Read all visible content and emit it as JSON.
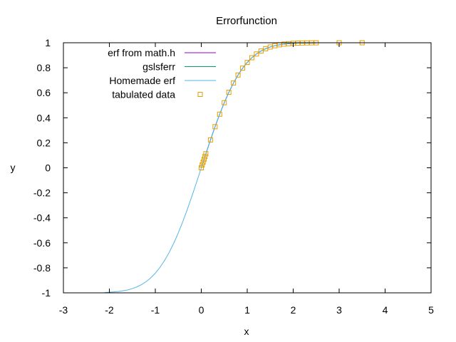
{
  "chart_data": {
    "type": "line",
    "title": "Errorfunction",
    "xlabel": "x",
    "ylabel": "y",
    "xlim": [
      -3,
      5
    ],
    "ylim": [
      -1,
      1
    ],
    "xticks": [
      -3,
      -2,
      -1,
      0,
      1,
      2,
      3,
      4,
      5
    ],
    "yticks": [
      -1,
      -0.8,
      -0.6,
      -0.4,
      -0.2,
      0,
      0.2,
      0.4,
      0.6,
      0.8,
      1
    ],
    "xtick_labels": [
      "-3",
      "-2",
      "-1",
      "0",
      "1",
      "2",
      "3",
      "4",
      "5"
    ],
    "ytick_labels": [
      "-1",
      "-0.8",
      "-0.6",
      "-0.4",
      "-0.2",
      "0",
      "0.2",
      "0.4",
      "0.6",
      "0.8",
      "1"
    ],
    "grid": false,
    "legend_position": "top-left",
    "series": [
      {
        "name": "erf from math.h",
        "style": "line",
        "color": "#9400d3",
        "x": [
          0,
          0.1,
          0.2,
          0.3,
          0.4,
          0.5,
          0.6,
          0.7,
          0.8,
          0.9,
          1.0,
          1.1,
          1.2,
          1.3,
          1.4,
          1.5,
          1.6,
          1.7,
          1.8,
          1.9,
          2.0,
          2.1,
          2.2,
          2.3,
          2.4,
          2.5
        ],
        "y": [
          0,
          0.1125,
          0.2227,
          0.3286,
          0.4284,
          0.5205,
          0.6039,
          0.6778,
          0.7421,
          0.7969,
          0.8427,
          0.8802,
          0.9103,
          0.934,
          0.9523,
          0.9661,
          0.9763,
          0.9838,
          0.9891,
          0.9928,
          0.9953,
          0.997,
          0.9981,
          0.9989,
          0.9993,
          0.9996
        ]
      },
      {
        "name": "gslsferr",
        "style": "line",
        "color": "#009e73",
        "x": [
          0,
          0.1,
          0.2,
          0.3,
          0.4,
          0.5,
          0.6,
          0.7,
          0.8,
          0.9,
          1.0,
          1.1,
          1.2,
          1.3,
          1.4,
          1.5,
          1.6,
          1.7,
          1.8,
          1.9,
          2.0,
          2.1,
          2.2,
          2.3,
          2.4,
          2.5
        ],
        "y": [
          0,
          0.1125,
          0.2227,
          0.3286,
          0.4284,
          0.5205,
          0.6039,
          0.6778,
          0.7421,
          0.7969,
          0.8427,
          0.8802,
          0.9103,
          0.934,
          0.9523,
          0.9661,
          0.9763,
          0.9838,
          0.9891,
          0.9928,
          0.9953,
          0.997,
          0.9981,
          0.9989,
          0.9993,
          0.9996
        ]
      },
      {
        "name": "Homemade erf",
        "style": "line",
        "color": "#56b4e9",
        "x": [
          -2.1,
          -2.0,
          -1.8,
          -1.6,
          -1.5,
          -1.4,
          -1.3,
          -1.2,
          -1.1,
          -1.0,
          -0.9,
          -0.8,
          -0.7,
          -0.6,
          -0.5,
          -0.4,
          -0.3,
          -0.2,
          -0.1,
          0,
          0.1,
          0.2,
          0.3,
          0.4,
          0.5,
          0.6,
          0.7,
          0.8,
          0.9,
          1.0,
          1.1,
          1.2,
          1.3,
          1.4,
          1.5,
          1.6,
          1.7,
          1.8,
          1.9,
          2.0,
          2.1,
          2.2,
          2.3,
          2.4,
          2.5
        ],
        "y": [
          -0.997,
          -0.9953,
          -0.9891,
          -0.9763,
          -0.9661,
          -0.9523,
          -0.934,
          -0.9103,
          -0.8802,
          -0.8427,
          -0.7969,
          -0.7421,
          -0.6778,
          -0.6039,
          -0.5205,
          -0.4284,
          -0.3286,
          -0.2227,
          -0.1125,
          0,
          0.1125,
          0.2227,
          0.3286,
          0.4284,
          0.5205,
          0.6039,
          0.6778,
          0.7421,
          0.7969,
          0.8427,
          0.8802,
          0.9103,
          0.934,
          0.9523,
          0.9661,
          0.9763,
          0.9838,
          0.9891,
          0.9928,
          0.9953,
          0.997,
          0.9981,
          0.9989,
          0.9993,
          0.9996
        ]
      },
      {
        "name": "tabulated data",
        "style": "points",
        "color": "#e69f00",
        "x": [
          0.0,
          0.02,
          0.04,
          0.06,
          0.08,
          0.1,
          0.2,
          0.3,
          0.4,
          0.5,
          0.6,
          0.7,
          0.8,
          0.9,
          1.0,
          1.1,
          1.2,
          1.3,
          1.4,
          1.5,
          1.6,
          1.7,
          1.8,
          1.9,
          2.0,
          2.1,
          2.2,
          2.3,
          2.4,
          2.5,
          3.0,
          3.5
        ],
        "y": [
          0.0,
          0.0226,
          0.0451,
          0.0676,
          0.0901,
          0.1125,
          0.2227,
          0.3286,
          0.4284,
          0.5205,
          0.6039,
          0.6778,
          0.7421,
          0.7969,
          0.8427,
          0.8802,
          0.9103,
          0.934,
          0.9523,
          0.9661,
          0.9763,
          0.9838,
          0.9891,
          0.9928,
          0.9953,
          0.997,
          0.9981,
          0.9989,
          0.9993,
          0.9996,
          1.0,
          1.0
        ]
      }
    ]
  }
}
